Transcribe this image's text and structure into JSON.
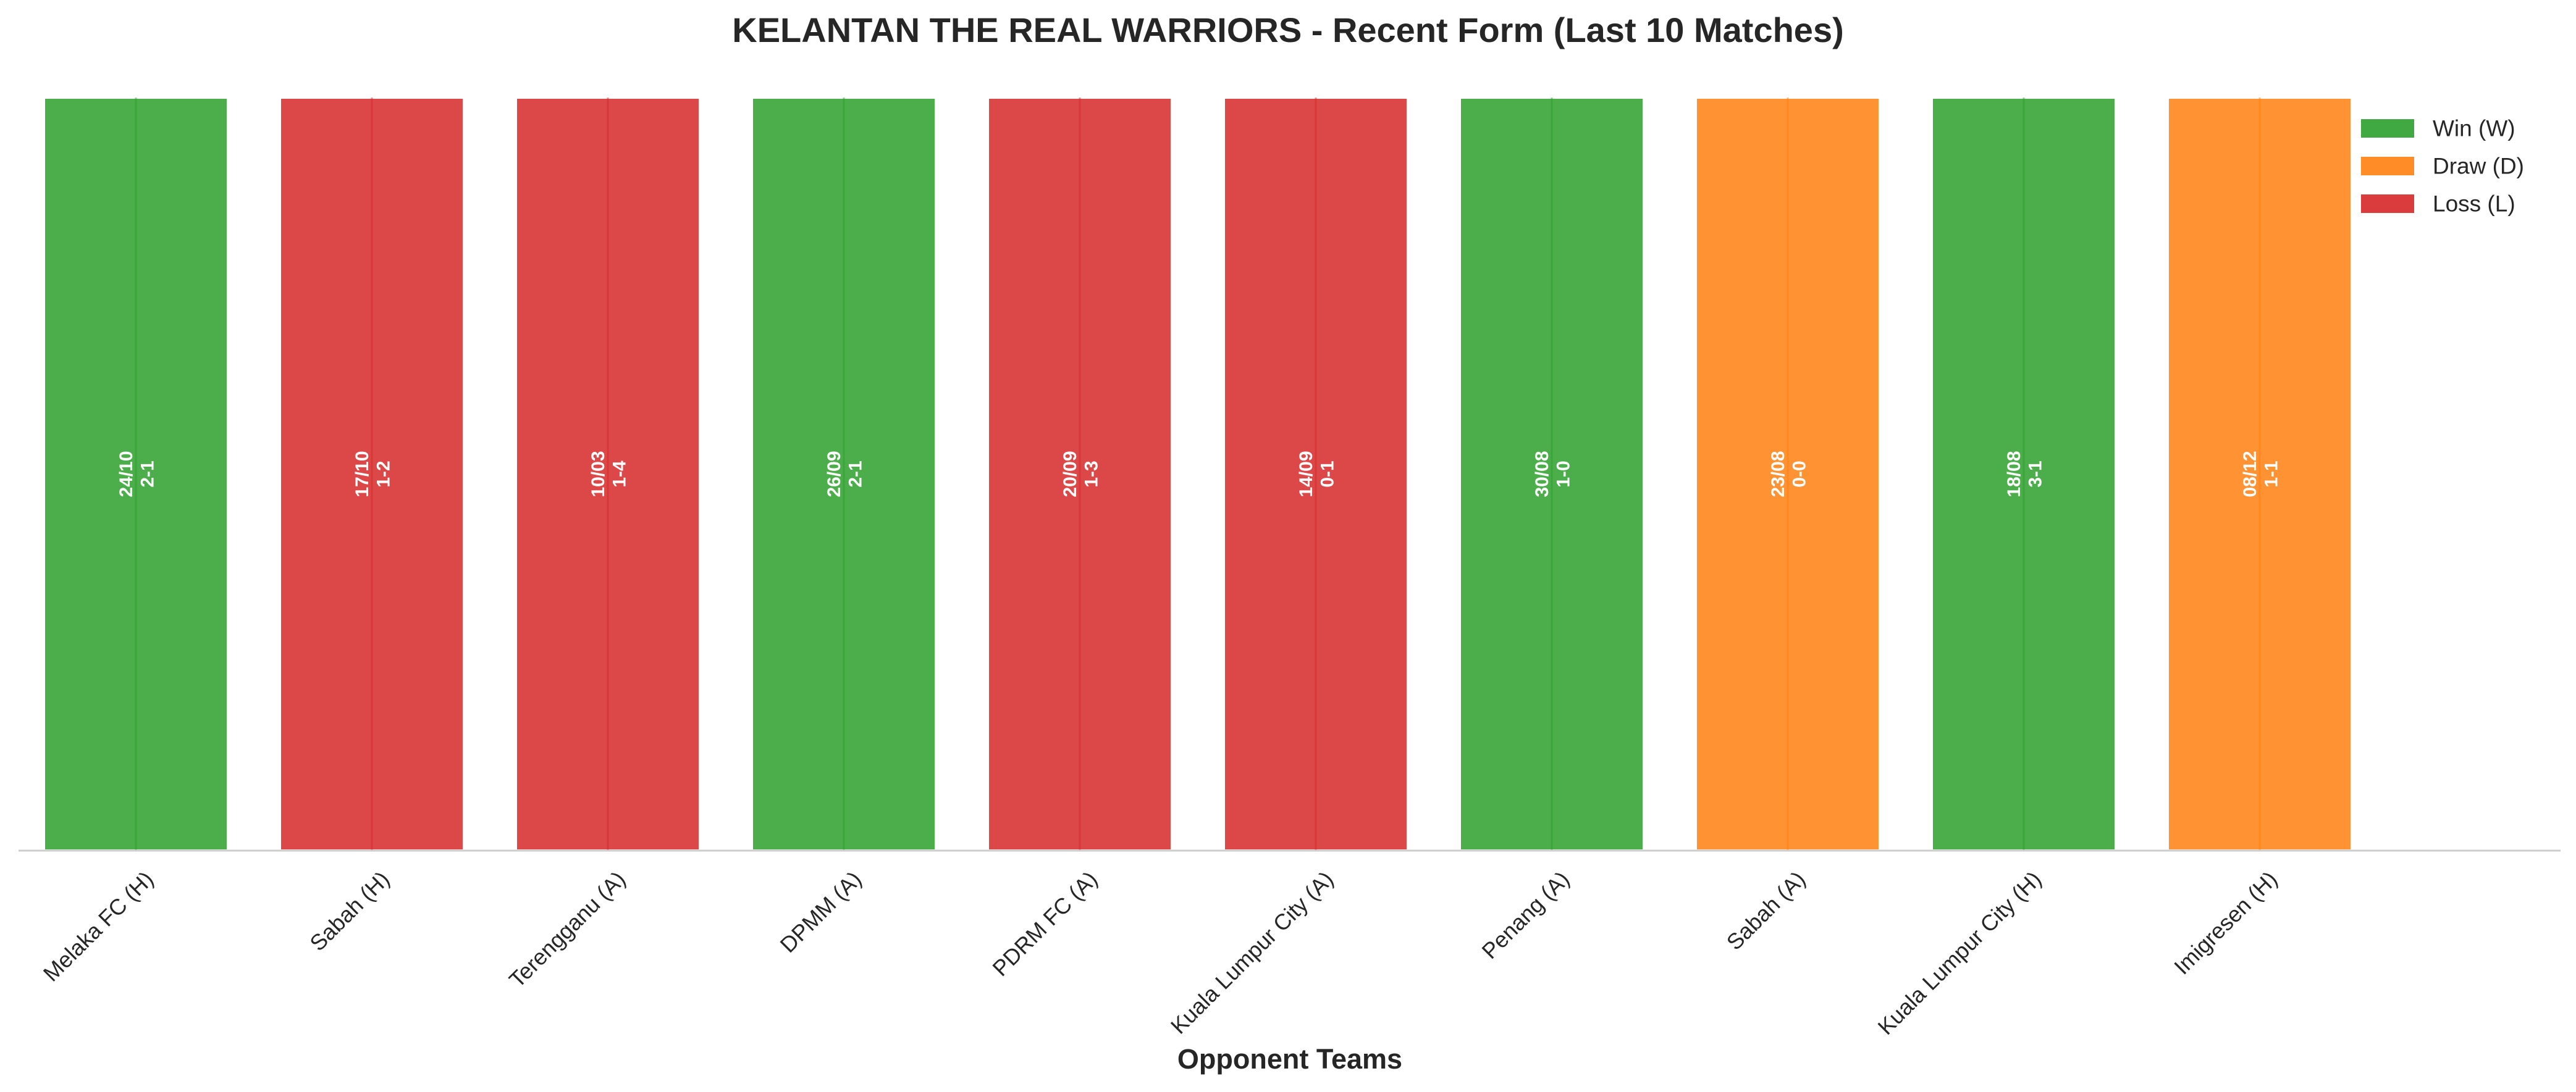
{
  "chart_data": {
    "type": "bar",
    "title": "KELANTAN THE REAL WARRIORS - Recent Form (Last 10 Matches)",
    "xlabel": "Opponent Teams",
    "ylabel": "",
    "ylim": [
      0,
      1
    ],
    "grid": false,
    "legend_position": "top-right",
    "legend": [
      {
        "label": "Win (W)",
        "result": "W"
      },
      {
        "label": "Draw (D)",
        "result": "D"
      },
      {
        "label": "Loss (L)",
        "result": "L"
      }
    ],
    "colors": {
      "W": "#2ca02c",
      "D": "#ff7f0e",
      "L": "#d62728"
    },
    "categories": [
      "Melaka FC (H)",
      "Sabah (H)",
      "Terengganu (A)",
      "DPMM (A)",
      "PDRM FC (A)",
      "Kuala Lumpur City (A)",
      "Penang (A)",
      "Sabah (A)",
      "Kuala Lumpur City (H)",
      "Imigresen (H)"
    ],
    "values": [
      1,
      1,
      1,
      1,
      1,
      1,
      1,
      1,
      1,
      1
    ],
    "matches": [
      {
        "opponent": "Melaka FC (H)",
        "result": "W",
        "date": "24/10",
        "score": "2-1"
      },
      {
        "opponent": "Sabah (H)",
        "result": "L",
        "date": "17/10",
        "score": "1-2"
      },
      {
        "opponent": "Terengganu (A)",
        "result": "L",
        "date": "10/03",
        "score": "1-4"
      },
      {
        "opponent": "DPMM (A)",
        "result": "W",
        "date": "26/09",
        "score": "2-1"
      },
      {
        "opponent": "PDRM FC (A)",
        "result": "L",
        "date": "20/09",
        "score": "1-3"
      },
      {
        "opponent": "Kuala Lumpur City (A)",
        "result": "L",
        "date": "14/09",
        "score": "0-1"
      },
      {
        "opponent": "Penang (A)",
        "result": "W",
        "date": "30/08",
        "score": "1-0"
      },
      {
        "opponent": "Sabah (A)",
        "result": "D",
        "date": "23/08",
        "score": "0-0"
      },
      {
        "opponent": "Kuala Lumpur City (H)",
        "result": "W",
        "date": "18/08",
        "score": "3-1"
      },
      {
        "opponent": "Imigresen (H)",
        "result": "D",
        "date": "08/12",
        "score": "1-1"
      }
    ]
  }
}
